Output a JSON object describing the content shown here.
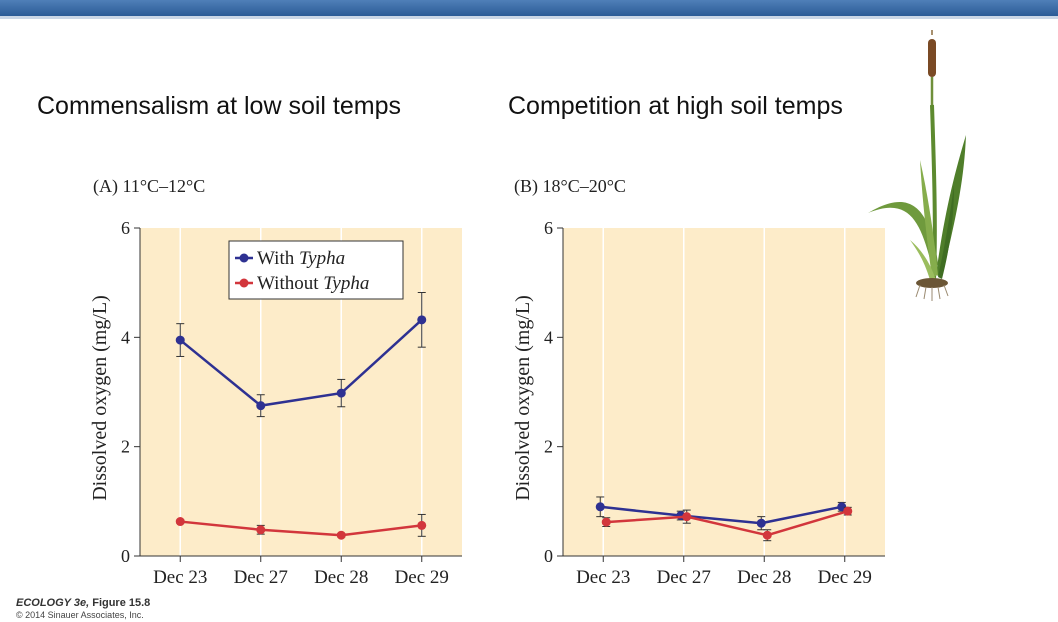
{
  "headings": {
    "left": "Commensalism at low soil temps",
    "right": "Competition at high soil temps"
  },
  "credit": {
    "book": "ECOLOGY 3e,",
    "figure": "Figure 15.8",
    "copyright": "© 2014 Sinauer Associates, Inc."
  },
  "colors": {
    "with": "#2e3192",
    "without": "#d2363c",
    "plot_bg": "#fdecc9",
    "grid": "#ffffff"
  },
  "chart_data": [
    {
      "type": "line",
      "panel_label": "(A)  11°C–12°C",
      "categories": [
        "Dec 23",
        "Dec 27",
        "Dec 28",
        "Dec 29"
      ],
      "ylabel": "Dissolved oxygen (mg/L)",
      "ylim": [
        0,
        6
      ],
      "yticks": [
        0,
        2,
        4,
        6
      ],
      "legend": {
        "placement": "top-right",
        "with_prefix": "With ",
        "without_prefix": "Without ",
        "genus": "Typha"
      },
      "series": [
        {
          "name": "With Typha",
          "values": [
            3.95,
            2.75,
            2.98,
            4.32
          ],
          "errors": [
            0.3,
            0.2,
            0.25,
            0.5
          ]
        },
        {
          "name": "Without Typha",
          "values": [
            0.63,
            0.48,
            0.38,
            0.56
          ],
          "errors": [
            0.03,
            0.08,
            0.03,
            0.2
          ]
        }
      ]
    },
    {
      "type": "line",
      "panel_label": "(B)  18°C–20°C",
      "categories": [
        "Dec 23",
        "Dec 27",
        "Dec 28",
        "Dec 29"
      ],
      "ylabel": "Dissolved oxygen (mg/L)",
      "ylim": [
        0,
        6
      ],
      "yticks": [
        0,
        2,
        4,
        6
      ],
      "series": [
        {
          "name": "With Typha",
          "values": [
            0.9,
            0.74,
            0.6,
            0.9
          ],
          "errors": [
            0.18,
            0.08,
            0.12,
            0.08
          ]
        },
        {
          "name": "Without Typha",
          "values": [
            0.62,
            0.72,
            0.38,
            0.82
          ],
          "errors": [
            0.08,
            0.12,
            0.1,
            0.07
          ]
        }
      ]
    }
  ]
}
